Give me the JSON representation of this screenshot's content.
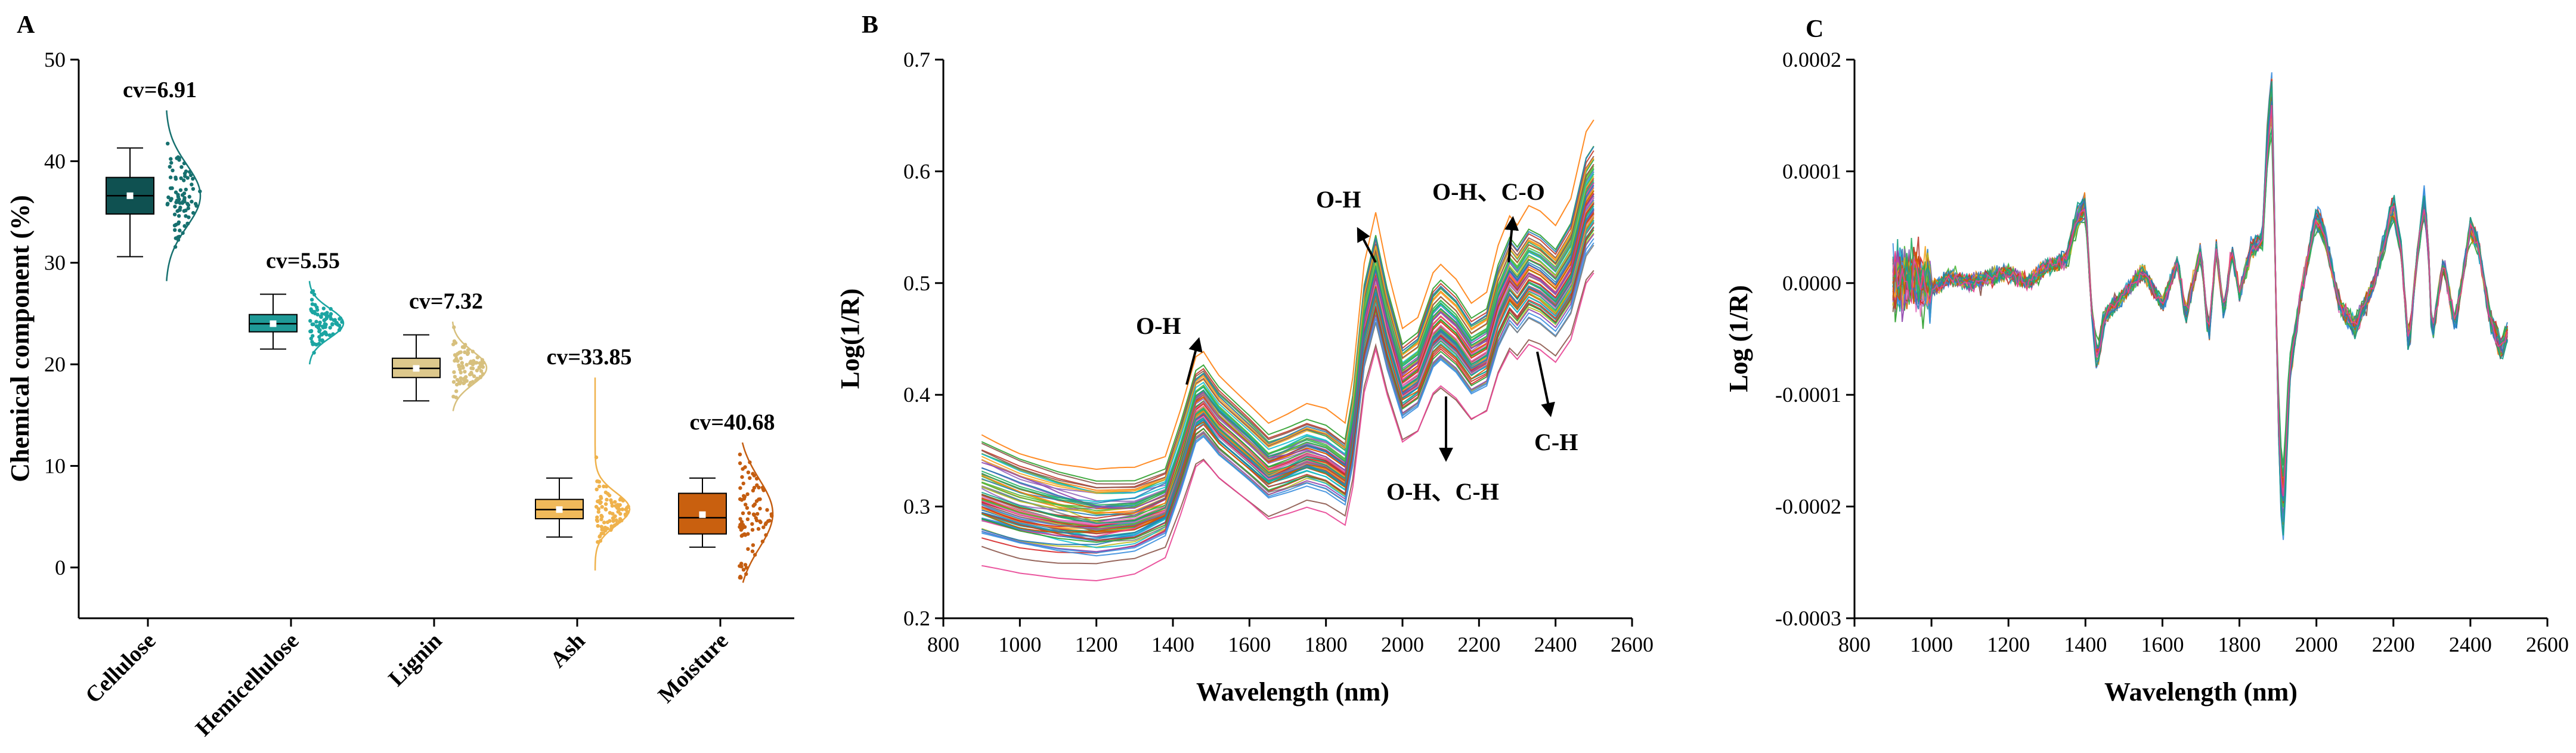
{
  "panels": {
    "a": "A",
    "b": "B",
    "c": "C"
  },
  "chart_data": [
    {
      "id": "A",
      "type": "box",
      "ylabel": "Chemical component (%)",
      "ylim": [
        -5,
        50
      ],
      "yticks": [
        0,
        10,
        20,
        30,
        40,
        50
      ],
      "categories": [
        {
          "name": "Cellulose",
          "color": "#0f5151",
          "point_color": "#16706f",
          "cv_label": "cv=6.91",
          "min": 30.6,
          "q1": 34.8,
          "median": 36.6,
          "q3": 38.4,
          "max": 41.3,
          "mean": 36.6,
          "spread_min": 28.2,
          "spread_max": 45.0,
          "n": 85
        },
        {
          "name": "Hemicellulose",
          "color": "#1f9a97",
          "point_color": "#1ba5a2",
          "cv_label": "cv=5.55",
          "min": 21.5,
          "q1": 23.2,
          "median": 24.0,
          "q3": 24.9,
          "max": 26.9,
          "mean": 24.0,
          "spread_min": 20.0,
          "spread_max": 28.2,
          "n": 85
        },
        {
          "name": "Lignin",
          "color": "#ddc88c",
          "point_color": "#d7c07e",
          "cv_label": "cv=7.32",
          "min": 16.4,
          "q1": 18.7,
          "median": 19.6,
          "q3": 20.6,
          "max": 22.9,
          "mean": 19.6,
          "spread_min": 15.4,
          "spread_max": 24.2,
          "n": 85
        },
        {
          "name": "Ash",
          "color": "#f0b95a",
          "point_color": "#efb24c",
          "cv_label": "cv=33.85",
          "min": 3.0,
          "q1": 4.8,
          "median": 5.7,
          "q3": 6.7,
          "max": 8.8,
          "mean": 5.7,
          "spread_min": -0.3,
          "spread_max": 18.7,
          "n": 85
        },
        {
          "name": "Moisture",
          "color": "#c9600f",
          "point_color": "#c45d10",
          "cv_label": "cv=40.68",
          "min": 2.0,
          "q1": 3.3,
          "median": 4.9,
          "q3": 7.3,
          "max": 8.8,
          "mean": 5.2,
          "spread_min": -1.5,
          "spread_max": 12.3,
          "n": 85
        }
      ]
    },
    {
      "id": "B",
      "type": "line",
      "xlabel": "Wavelength (nm)",
      "ylabel": "Log(1/R)",
      "xlim": [
        800,
        2600
      ],
      "ylim": [
        0.2,
        0.7
      ],
      "xticks": [
        800,
        1000,
        1200,
        1400,
        1600,
        1800,
        2000,
        2200,
        2400,
        2600
      ],
      "yticks": [
        0.2,
        0.3,
        0.4,
        0.5,
        0.6,
        0.7
      ],
      "series_count": 80,
      "x_range": [
        900,
        2500
      ],
      "mean_profile": {
        "x": [
          900,
          1000,
          1100,
          1200,
          1300,
          1380,
          1420,
          1460,
          1480,
          1520,
          1560,
          1600,
          1650,
          1700,
          1750,
          1800,
          1850,
          1870,
          1900,
          1930,
          1960,
          2000,
          2040,
          2080,
          2100,
          2140,
          2180,
          2220,
          2250,
          2280,
          2300,
          2330,
          2360,
          2400,
          2440,
          2480,
          2500
        ],
        "y": [
          0.31,
          0.298,
          0.29,
          0.285,
          0.288,
          0.3,
          0.34,
          0.385,
          0.39,
          0.372,
          0.36,
          0.348,
          0.332,
          0.338,
          0.345,
          0.34,
          0.328,
          0.365,
          0.458,
          0.5,
          0.455,
          0.408,
          0.418,
          0.455,
          0.462,
          0.45,
          0.43,
          0.438,
          0.475,
          0.498,
          0.49,
          0.505,
          0.5,
          0.488,
          0.51,
          0.565,
          0.575
        ]
      },
      "annotations": [
        "O-H",
        "O-H",
        "O-H、C-O",
        "O-H、C-H",
        "C-H"
      ]
    },
    {
      "id": "C",
      "type": "line",
      "xlabel": "Wavelength (nm)",
      "ylabel": "Log (1/R)",
      "xlim": [
        800,
        2600
      ],
      "ylim": [
        -0.0003,
        0.0002
      ],
      "xticks": [
        800,
        1000,
        1200,
        1400,
        1600,
        1800,
        2000,
        2200,
        2400,
        2600
      ],
      "yticks": [
        "0.0002",
        "0.0001",
        "0.0000",
        "-0.0001",
        "-0.0002",
        "-0.0003"
      ],
      "series_count": 60,
      "x_range": [
        900,
        2500
      ],
      "mean_profile": {
        "x": [
          900,
          950,
          1000,
          1050,
          1100,
          1150,
          1200,
          1250,
          1300,
          1350,
          1380,
          1400,
          1415,
          1430,
          1450,
          1500,
          1550,
          1600,
          1640,
          1660,
          1700,
          1720,
          1740,
          1760,
          1780,
          1800,
          1830,
          1860,
          1875,
          1885,
          1895,
          1905,
          1915,
          1930,
          1960,
          2000,
          2020,
          2060,
          2100,
          2150,
          2200,
          2220,
          2240,
          2260,
          2280,
          2290,
          2300,
          2330,
          2360,
          2400,
          2420,
          2450,
          2480,
          2500
        ],
        "y": [
          0.0,
          5e-06,
          -5e-06,
          5e-06,
          0.0,
          5e-06,
          1e-05,
          0.0,
          1.5e-05,
          2e-05,
          6e-05,
          7e-05,
          -2e-05,
          -7e-05,
          -3e-05,
          -1e-05,
          1e-05,
          -2e-05,
          2e-05,
          -3e-05,
          3e-05,
          -5e-05,
          3e-05,
          -3e-05,
          3e-05,
          -1e-05,
          3e-05,
          4e-05,
          0.00014,
          0.000165,
          -2e-05,
          -0.00017,
          -0.0002,
          -8e-05,
          -1e-05,
          6e-05,
          4.5e-05,
          -2e-05,
          -4e-05,
          0.0,
          7e-05,
          3e-05,
          -6e-05,
          2e-05,
          7e-05,
          4e-05,
          -5e-05,
          2e-05,
          -4e-05,
          5e-05,
          3.5e-05,
          -3e-05,
          -6e-05,
          -4e-05
        ]
      }
    }
  ]
}
